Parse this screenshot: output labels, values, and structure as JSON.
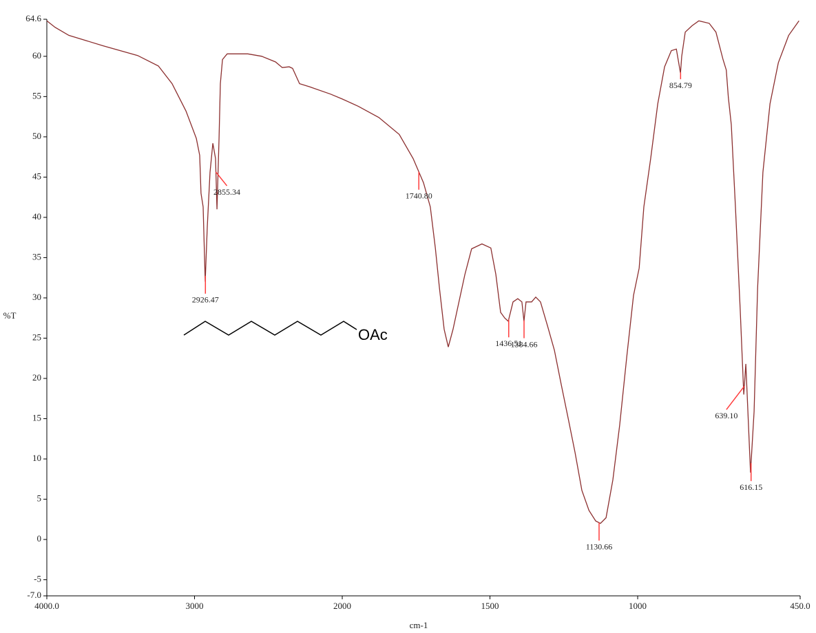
{
  "chart_data": {
    "type": "line",
    "y_label": "%T",
    "x_label": "cm-1",
    "xlim": [
      4000,
      450
    ],
    "x_scale_break": 2000,
    "xticks": [
      {
        "value": 4000,
        "label": "4000.0"
      },
      3000,
      2000,
      1500,
      1000,
      {
        "value": 450,
        "label": "450.0"
      }
    ],
    "ylim": [
      -7,
      64.6
    ],
    "yticks": [
      64.6,
      60,
      55,
      50,
      45,
      40,
      35,
      30,
      25,
      20,
      15,
      10,
      5,
      0,
      -5,
      {
        "value": -7,
        "label": "-7.0"
      }
    ],
    "series": [
      {
        "color": "#8b2e2e",
        "x": [
          4000,
          3944,
          3851,
          3618,
          3385,
          3245,
          3152,
          3058,
          2988,
          2965,
          2956,
          2942,
          2928,
          2914,
          2895,
          2876,
          2858,
          2848,
          2834,
          2825,
          2811,
          2779,
          2639,
          2545,
          2452,
          2406,
          2359,
          2336,
          2289,
          2219,
          2079,
          2000,
          1946,
          1876,
          1807,
          1760,
          1725,
          1702,
          1685,
          1671,
          1655,
          1641,
          1625,
          1608,
          1585,
          1562,
          1527,
          1497,
          1480,
          1464,
          1450,
          1438,
          1422,
          1406,
          1392,
          1385,
          1378,
          1359,
          1345,
          1329,
          1305,
          1282,
          1259,
          1235,
          1212,
          1189,
          1165,
          1142,
          1126,
          1107,
          1084,
          1061,
          1037,
          1014,
          995,
          979,
          956,
          932,
          909,
          886,
          869,
          855,
          851,
          839,
          816,
          793,
          758,
          735,
          711,
          700,
          693,
          683,
          669,
          653,
          641,
          634,
          627,
          618,
          606,
          594,
          576,
          552,
          524,
          489,
          454
        ],
        "values": [
          64.4,
          63.6,
          62.6,
          61.3,
          60.1,
          58.8,
          56.6,
          53.2,
          49.8,
          47.7,
          43.0,
          41.3,
          32.0,
          38.8,
          45.6,
          49.2,
          47.3,
          41.0,
          49.8,
          56.6,
          59.6,
          60.3,
          60.3,
          60.0,
          59.3,
          58.6,
          58.7,
          58.5,
          56.6,
          56.2,
          55.3,
          54.7,
          53.8,
          52.4,
          50.3,
          47.3,
          44.3,
          41.3,
          36.2,
          31.2,
          26.1,
          23.9,
          26.1,
          29.0,
          32.9,
          36.1,
          36.7,
          36.2,
          32.9,
          28.2,
          27.5,
          27.1,
          29.5,
          29.9,
          29.5,
          27.1,
          29.5,
          29.5,
          30.1,
          29.5,
          26.5,
          23.5,
          19.3,
          15.0,
          10.8,
          6.1,
          3.6,
          2.3,
          2.0,
          2.7,
          7.4,
          14.2,
          22.7,
          30.3,
          33.7,
          41.3,
          47.3,
          54.1,
          58.7,
          60.7,
          60.9,
          57.9,
          60.0,
          63.0,
          63.8,
          64.4,
          64.1,
          63.0,
          59.6,
          58.3,
          54.9,
          51.5,
          41.3,
          28.6,
          18.0,
          21.8,
          15.9,
          8.3,
          15.9,
          31.2,
          45.6,
          54.1,
          59.2,
          62.6,
          64.4
        ]
      }
    ],
    "peak_color": "#ff3b3b",
    "peaks": [
      2926.47,
      2855.34,
      {
        "value": 1740.8,
        "label": "1740.80"
      },
      1436.51,
      1384.66,
      1130.66,
      854.79,
      {
        "value": 639.1,
        "label": "639.10"
      },
      616.15
    ],
    "structure_label": "OAc"
  }
}
